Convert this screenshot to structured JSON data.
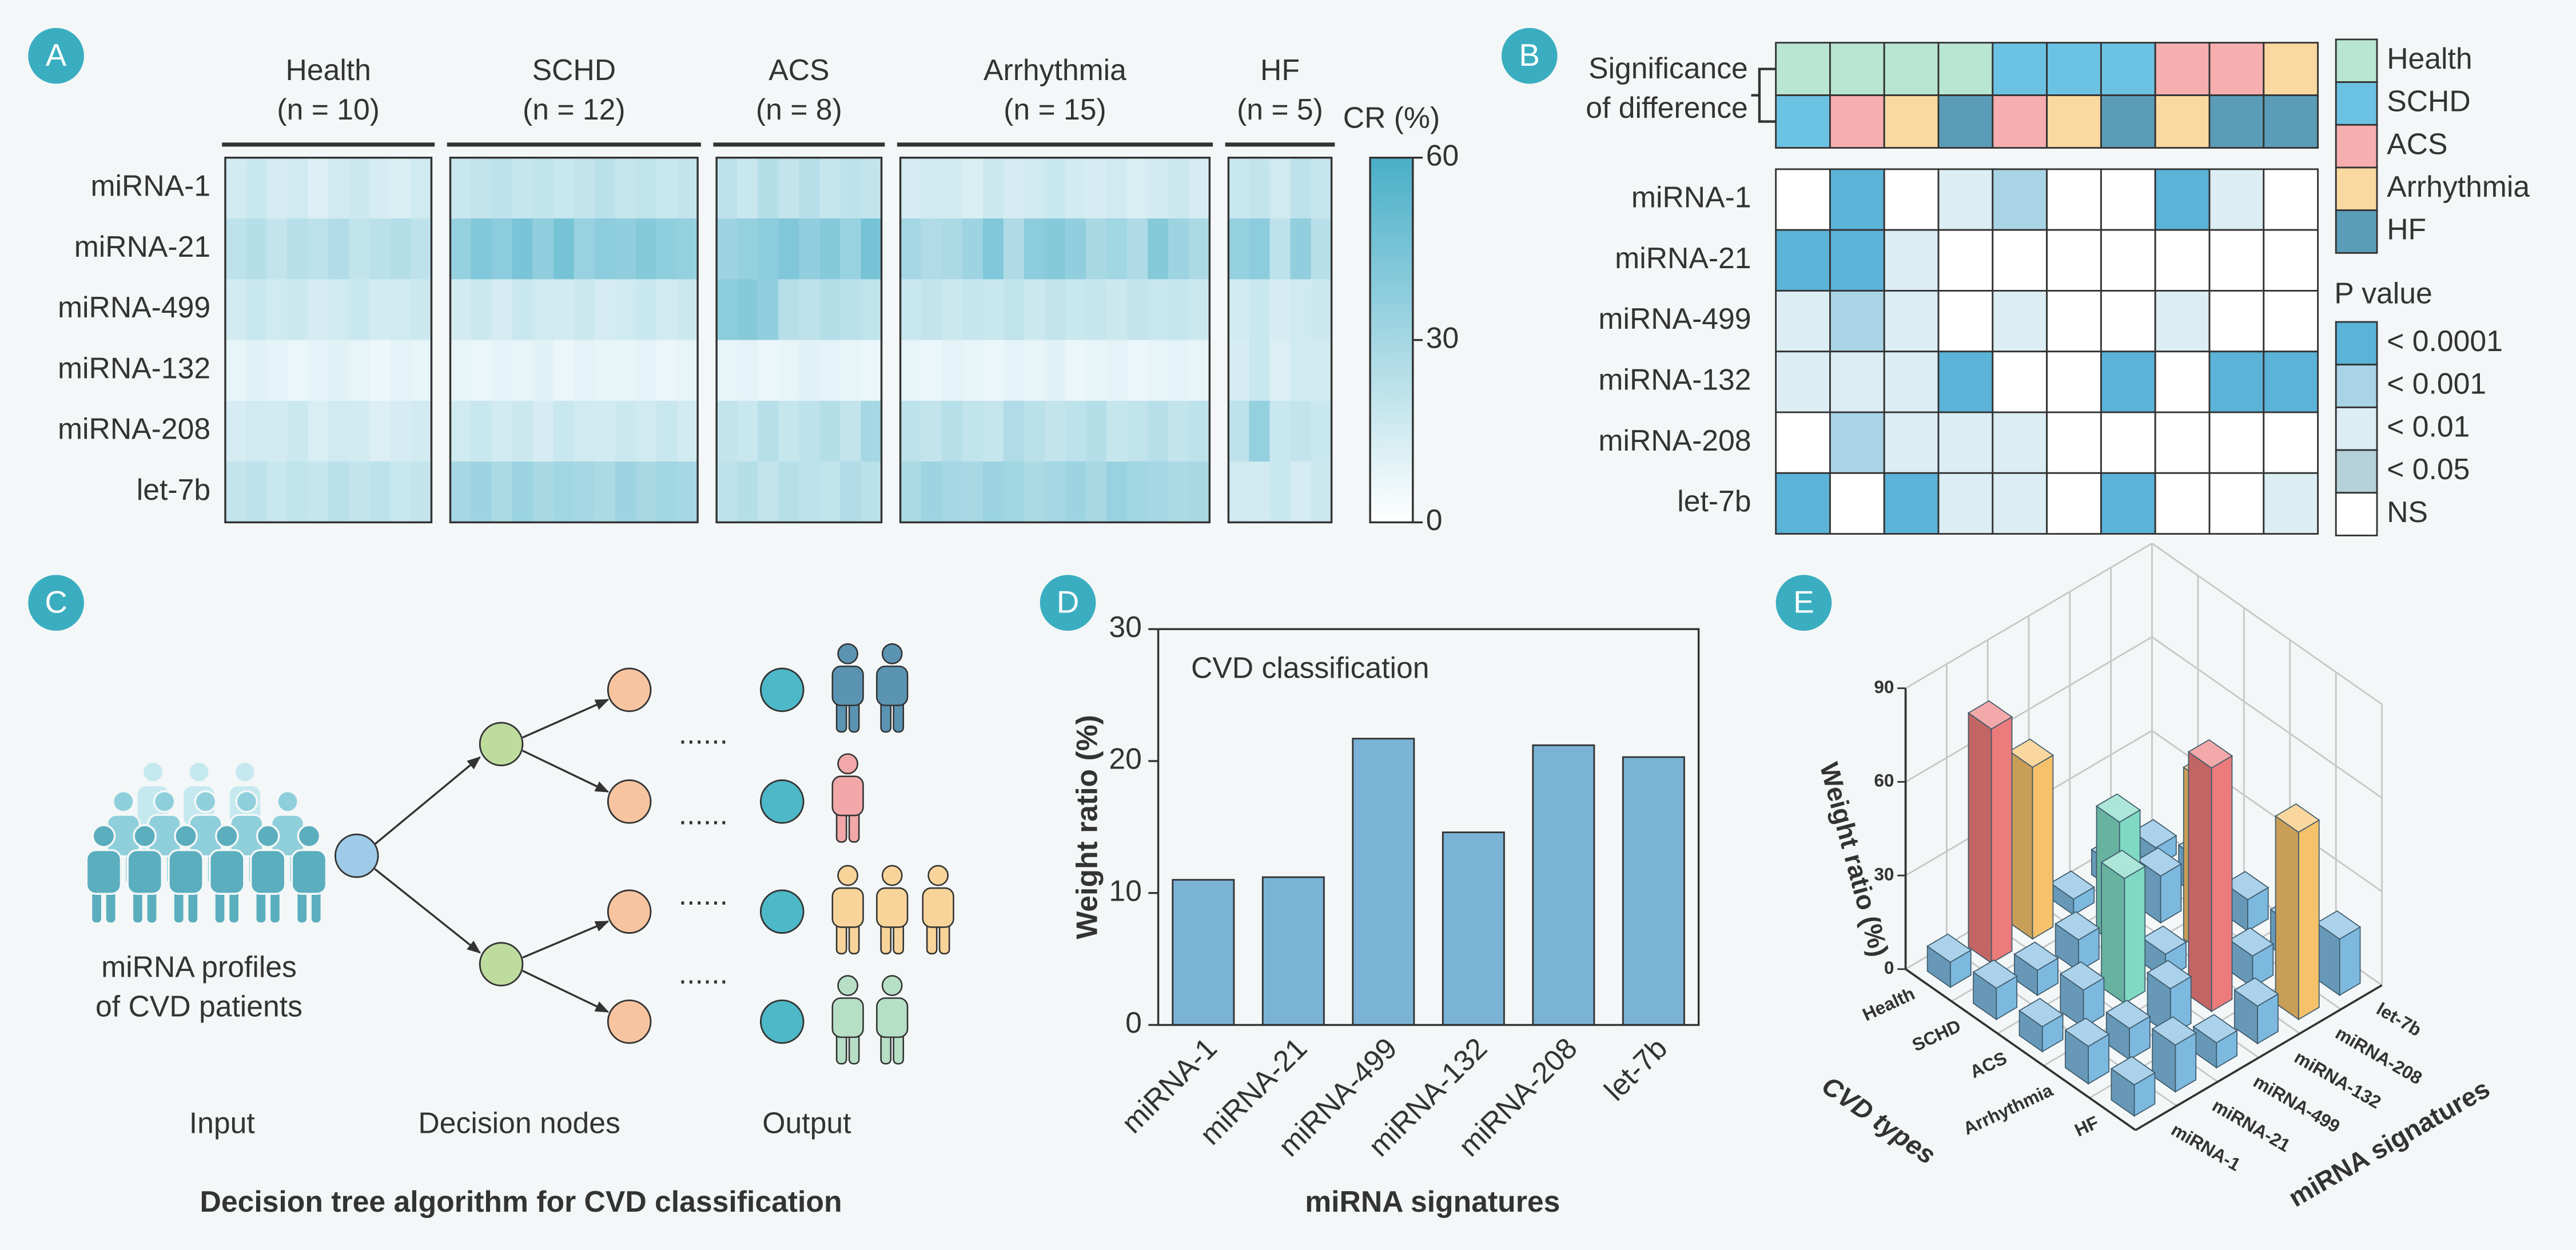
{
  "panel_labels": [
    "A",
    "B",
    "C",
    "D",
    "E"
  ],
  "chart_data": [
    {
      "type": "heatmap",
      "colorbar_title": "CR (%)",
      "rows": [
        "miRNA-1",
        "miRNA-21",
        "miRNA-499",
        "miRNA-132",
        "miRNA-208",
        "let-7b"
      ],
      "zlim": [
        0,
        60
      ],
      "zticks": [
        0,
        30,
        60
      ],
      "colormap": [
        "#ffffff",
        "#4aafc8"
      ],
      "groups": [
        {
          "name": "Health",
          "n": "(n = 10)",
          "values": [
            [
              15,
              18,
              14,
              16,
              12,
              15,
              17,
              14,
              13,
              16
            ],
            [
              22,
              25,
              20,
              24,
              22,
              26,
              21,
              23,
              25,
              22
            ],
            [
              15,
              18,
              16,
              17,
              14,
              16,
              18,
              15,
              16,
              17
            ],
            [
              8,
              10,
              9,
              7,
              9,
              10,
              8,
              6,
              9,
              8
            ],
            [
              14,
              16,
              15,
              17,
              13,
              16,
              15,
              12,
              14,
              15
            ],
            [
              20,
              22,
              18,
              21,
              19,
              23,
              20,
              22,
              18,
              20
            ]
          ]
        },
        {
          "name": "SCHD",
          "n": "(n = 12)",
          "values": [
            [
              18,
              20,
              22,
              19,
              21,
              18,
              20,
              23,
              19,
              21,
              18,
              20
            ],
            [
              35,
              42,
              38,
              44,
              36,
              45,
              34,
              38,
              36,
              40,
              37,
              35
            ],
            [
              15,
              17,
              14,
              18,
              16,
              15,
              17,
              14,
              16,
              18,
              15,
              17
            ],
            [
              8,
              7,
              9,
              8,
              10,
              7,
              9,
              8,
              8,
              9,
              7,
              8
            ],
            [
              16,
              18,
              15,
              17,
              14,
              18,
              16,
              15,
              17,
              16,
              18,
              15
            ],
            [
              30,
              32,
              28,
              33,
              29,
              31,
              30,
              28,
              32,
              29,
              31,
              30
            ]
          ]
        },
        {
          "name": "ACS",
          "n": "(n = 8)",
          "values": [
            [
              22,
              18,
              25,
              20,
              24,
              19,
              22,
              20
            ],
            [
              32,
              35,
              38,
              42,
              36,
              40,
              34,
              45
            ],
            [
              38,
              40,
              36,
              24,
              22,
              25,
              23,
              21
            ],
            [
              8,
              9,
              7,
              8,
              10,
              9,
              8,
              7
            ],
            [
              20,
              18,
              24,
              19,
              22,
              25,
              20,
              30
            ],
            [
              22,
              25,
              20,
              24,
              22,
              21,
              26,
              23
            ]
          ]
        },
        {
          "name": "Arrhythmia",
          "n": "(n = 15)",
          "values": [
            [
              14,
              16,
              15,
              13,
              17,
              14,
              16,
              18,
              15,
              14,
              16,
              13,
              15,
              17,
              14
            ],
            [
              30,
              26,
              28,
              32,
              42,
              27,
              38,
              40,
              36,
              29,
              31,
              27,
              40,
              32,
              28
            ],
            [
              18,
              20,
              17,
              19,
              18,
              21,
              17,
              20,
              18,
              19,
              17,
              20,
              18,
              19,
              17
            ],
            [
              8,
              7,
              9,
              8,
              7,
              9,
              8,
              10,
              7,
              8,
              9,
              7,
              8,
              9,
              8
            ],
            [
              22,
              20,
              24,
              21,
              19,
              26,
              23,
              20,
              22,
              25,
              19,
              21,
              24,
              20,
              22
            ],
            [
              28,
              32,
              30,
              29,
              33,
              31,
              28,
              30,
              32,
              29,
              34,
              31,
              30,
              28,
              29
            ]
          ]
        },
        {
          "name": "HF",
          "n": "(n = 5)",
          "values": [
            [
              18,
              20,
              16,
              22,
              19
            ],
            [
              35,
              38,
              22,
              36,
              24
            ],
            [
              15,
              18,
              14,
              16,
              17
            ],
            [
              14,
              18,
              12,
              16,
              15
            ],
            [
              22,
              35,
              18,
              20,
              18
            ],
            [
              16,
              15,
              18,
              14,
              17
            ]
          ]
        }
      ]
    },
    {
      "type": "matrix",
      "title_lines": [
        "Significance",
        "of difference"
      ],
      "groups": [
        "Health",
        "SCHD",
        "ACS",
        "Arrhythmia",
        "HF"
      ],
      "group_colors": [
        "#b9e5d3",
        "#6cc2e3",
        "#f7aeae",
        "#fad9a1",
        "#5b9db8"
      ],
      "pairs": [
        [
          0,
          1
        ],
        [
          0,
          2
        ],
        [
          0,
          3
        ],
        [
          0,
          4
        ],
        [
          1,
          2
        ],
        [
          1,
          3
        ],
        [
          1,
          4
        ],
        [
          2,
          3
        ],
        [
          2,
          4
        ],
        [
          3,
          4
        ]
      ],
      "rows": [
        "miRNA-1",
        "miRNA-21",
        "miRNA-499",
        "miRNA-132",
        "miRNA-208",
        "let-7b"
      ],
      "p_title": "P value",
      "p_levels": [
        "< 0.0001",
        "< 0.001",
        "< 0.01",
        "< 0.05",
        "NS"
      ],
      "p_colors": [
        "#5bb3d8",
        "#a9d4e6",
        "#dcedf4",
        "#b5d1da",
        "#ffffff"
      ],
      "levels": [
        [
          4,
          0,
          4,
          2,
          1,
          4,
          4,
          0,
          2,
          4
        ],
        [
          0,
          0,
          2,
          4,
          4,
          4,
          4,
          4,
          4,
          4
        ],
        [
          2,
          1,
          2,
          4,
          2,
          4,
          4,
          2,
          4,
          4
        ],
        [
          2,
          2,
          2,
          0,
          4,
          4,
          0,
          4,
          0,
          0
        ],
        [
          4,
          1,
          2,
          2,
          2,
          4,
          4,
          4,
          4,
          4
        ],
        [
          0,
          4,
          0,
          2,
          2,
          4,
          0,
          4,
          4,
          2
        ]
      ]
    },
    {
      "type": "bar",
      "annotation": "CVD classification",
      "categories": [
        "miRNA-1",
        "miRNA-21",
        "miRNA-499",
        "miRNA-132",
        "miRNA-208",
        "let-7b"
      ],
      "values": [
        11,
        11.2,
        21.7,
        14.6,
        21.2,
        20.3
      ],
      "color": "#7ab3d6",
      "ylim": [
        0,
        30
      ],
      "yticks": [
        0,
        10,
        20,
        30
      ],
      "ylabel": "Weight ratio (%)",
      "xlabel": "miRNA signatures"
    },
    {
      "type": "bar3d",
      "x_categories": [
        "Health",
        "SCHD",
        "ACS",
        "Arrhythmia",
        "HF"
      ],
      "y_categories": [
        "miRNA-1",
        "miRNA-21",
        "miRNA-499",
        "miRNA-132",
        "miRNA-208",
        "let-7b"
      ],
      "values": [
        [
          8,
          75,
          55,
          5,
          8,
          6
        ],
        [
          10,
          8,
          10,
          40,
          15,
          12
        ],
        [
          8,
          12,
          40,
          8,
          55,
          10
        ],
        [
          12,
          10,
          15,
          78,
          10,
          12
        ],
        [
          10,
          15,
          8,
          12,
          60,
          18
        ]
      ],
      "colors": [
        [
          "#7db9df",
          "#ec7b7b",
          "#f5c16a",
          "#7db9df",
          "#7db9df",
          "#7db9df"
        ],
        [
          "#7db9df",
          "#7db9df",
          "#7db9df",
          "#7fd9c3",
          "#7db9df",
          "#7db9df"
        ],
        [
          "#7db9df",
          "#7db9df",
          "#7fd9c3",
          "#7db9df",
          "#f5c16a",
          "#7db9df"
        ],
        [
          "#7db9df",
          "#7db9df",
          "#7db9df",
          "#ec7b7b",
          "#7db9df",
          "#7db9df"
        ],
        [
          "#7db9df",
          "#7db9df",
          "#7db9df",
          "#7db9df",
          "#f5c16a",
          "#7db9df"
        ]
      ],
      "zlim": [
        0,
        90
      ],
      "zticks": [
        0,
        30,
        60,
        90
      ],
      "zlabel": "Weight ratio (%)",
      "xlabel": "CVD types",
      "ylabel": "miRNA signatures"
    }
  ],
  "diagram": {
    "crowd_caption": [
      "miRNA profiles",
      "of CVD patients"
    ],
    "stages": [
      "Input",
      "Decision nodes",
      "Output"
    ],
    "ellipsis": "......",
    "caption": "Decision tree algorithm for CVD classification"
  }
}
